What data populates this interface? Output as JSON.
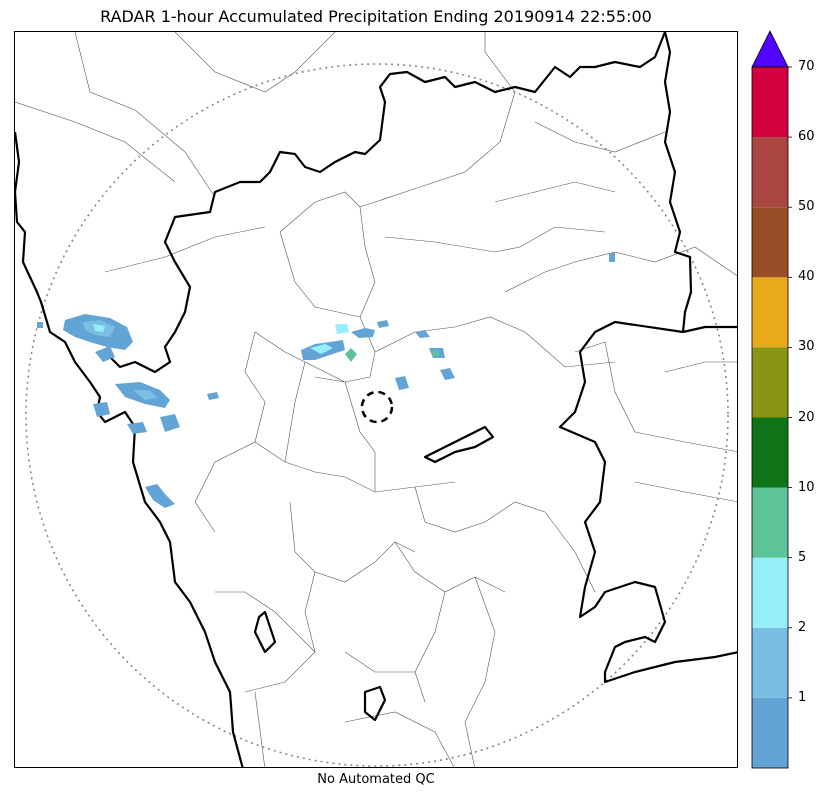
{
  "title": "RADAR 1-hour Accumulated Precipitation Ending 20190914 22:55:00",
  "footer_note": "No Automated QC",
  "colorbar": {
    "levels": [
      {
        "color": "#63A4D6",
        "label": ""
      },
      {
        "color": "#79BEE3",
        "label": "1"
      },
      {
        "color": "#96EEFA",
        "label": "2"
      },
      {
        "color": "#5DC49A",
        "label": "5"
      },
      {
        "color": "#0E7417",
        "label": "10"
      },
      {
        "color": "#8A9516",
        "label": "20"
      },
      {
        "color": "#E8A91B",
        "label": "30"
      },
      {
        "color": "#9A4E27",
        "label": "40"
      },
      {
        "color": "#A94642",
        "label": "50"
      },
      {
        "color": "#D20241",
        "label": "60"
      }
    ],
    "top_label": "70",
    "extend_color": "#5104FF"
  },
  "map": {
    "range_ring_color": "#888888",
    "state_border_color": "#000000",
    "district_border_color": "#555555"
  }
}
